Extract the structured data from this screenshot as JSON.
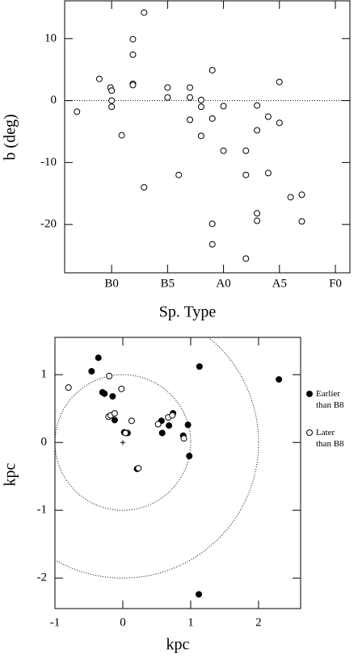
{
  "chart_data": [
    {
      "type": "scatter",
      "ylabel": "b (deg)",
      "xlabel": "Sp. Type",
      "color": "#000000",
      "marker": "open",
      "xlim": [
        -4.2,
        21.3
      ],
      "ylim": [
        -27.8,
        16.1
      ],
      "xticks": [
        {
          "value": 0,
          "label": "B0"
        },
        {
          "value": 5,
          "label": "B5"
        },
        {
          "value": 10,
          "label": "A0"
        },
        {
          "value": 15,
          "label": "A5"
        },
        {
          "value": 20,
          "label": "F0"
        }
      ],
      "yticks": [
        -20,
        -10,
        0,
        10
      ],
      "hline": 0,
      "x": [
        -3.1,
        -1.1,
        -0.1,
        0,
        0,
        0,
        0.9,
        1.9,
        1.9,
        1.9,
        1.9,
        2.9,
        2.9,
        5,
        5,
        6,
        7,
        7,
        7,
        8,
        8,
        8,
        9,
        9,
        9,
        9,
        10,
        10,
        12,
        12,
        12,
        13,
        13,
        13,
        13,
        14,
        14,
        15,
        15,
        16,
        17,
        17
      ],
      "values": [
        -1.8,
        3.5,
        2.1,
        1.6,
        0,
        -1.0,
        -5.6,
        9.9,
        7.4,
        2.7,
        2.5,
        14.2,
        -14.0,
        2.1,
        0.5,
        -12,
        2.1,
        0.5,
        -3.1,
        0.1,
        -1.0,
        -5.7,
        4.9,
        -2.9,
        -19.9,
        -23.2,
        -0.9,
        -8.1,
        -8.1,
        -12,
        -25.5,
        -0.8,
        -4.8,
        -18.2,
        -19.4,
        -2.6,
        -11.7,
        3.0,
        -3.6,
        -15.6,
        -15.2,
        -19.5
      ]
    },
    {
      "type": "scatter",
      "ylabel": "kpc",
      "xlabel": "kpc",
      "xlim": [
        -1,
        2.62
      ],
      "ylim": [
        -2.45,
        1.55
      ],
      "xticks": [
        -1,
        0,
        1,
        2
      ],
      "yticks": [
        -2,
        -1,
        0,
        1
      ],
      "circles": [
        1,
        2
      ],
      "origin_marker": true,
      "series": [
        {
          "name": "Earlier than B8",
          "color": "#000000",
          "marker": "filled",
          "x": [
            -0.36,
            -0.46,
            -0.3,
            -0.27,
            -0.15,
            -0.12,
            0.02,
            0.07,
            0.21,
            0.57,
            0.58,
            0.68,
            0.74,
            0.89,
            0.96,
            0.98,
            1.13,
            2.3,
            1.12
          ],
          "values": [
            1.25,
            1.05,
            0.74,
            0.72,
            0.68,
            0.33,
            0.15,
            0.14,
            -0.39,
            0.32,
            0.14,
            0.25,
            0.43,
            0.1,
            0.26,
            -0.2,
            1.12,
            0.93,
            -2.24
          ]
        },
        {
          "name": "Later than B8",
          "color": "#000000",
          "marker": "open",
          "x": [
            -0.8,
            -0.2,
            -0.02,
            -0.21,
            -0.18,
            -0.12,
            0.13,
            0.04,
            0.52,
            0.67,
            0.73,
            0.9,
            0.23
          ],
          "values": [
            0.81,
            0.98,
            0.79,
            0.38,
            0.4,
            0.43,
            0.32,
            0.14,
            0.27,
            0.37,
            0.4,
            0.06,
            -0.38
          ]
        }
      ]
    }
  ]
}
